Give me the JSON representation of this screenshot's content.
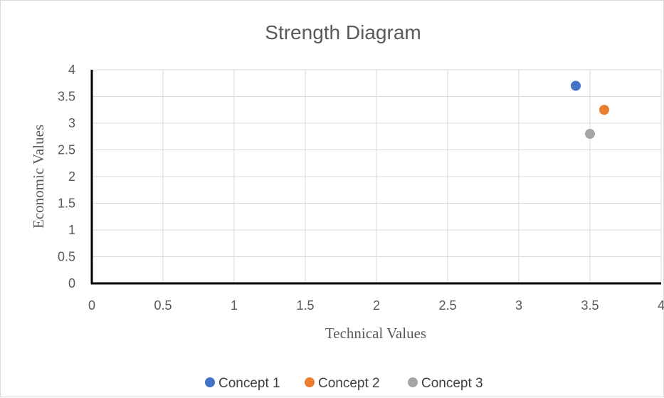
{
  "chart_data": {
    "type": "scatter",
    "title": "Strength Diagram",
    "xlabel": "Technical Values",
    "ylabel": "Economic Values",
    "xlim": [
      0,
      4
    ],
    "ylim": [
      0,
      4
    ],
    "x_ticks": [
      "0",
      "0.5",
      "1",
      "1.5",
      "2",
      "2.5",
      "3",
      "3.5",
      "4"
    ],
    "y_ticks": [
      "0",
      "0.5",
      "1",
      "1.5",
      "2",
      "2.5",
      "3",
      "3.5",
      "4"
    ],
    "grid": true,
    "legend_position": "bottom",
    "series": [
      {
        "name": "Concept 1",
        "color": "#4472C4",
        "points": [
          {
            "x": 3.4,
            "y": 3.7
          }
        ]
      },
      {
        "name": "Concept 2",
        "color": "#ED7D31",
        "points": [
          {
            "x": 3.6,
            "y": 3.25
          }
        ]
      },
      {
        "name": "Concept 3",
        "color": "#A5A5A5",
        "points": [
          {
            "x": 3.5,
            "y": 2.8
          }
        ]
      }
    ]
  }
}
